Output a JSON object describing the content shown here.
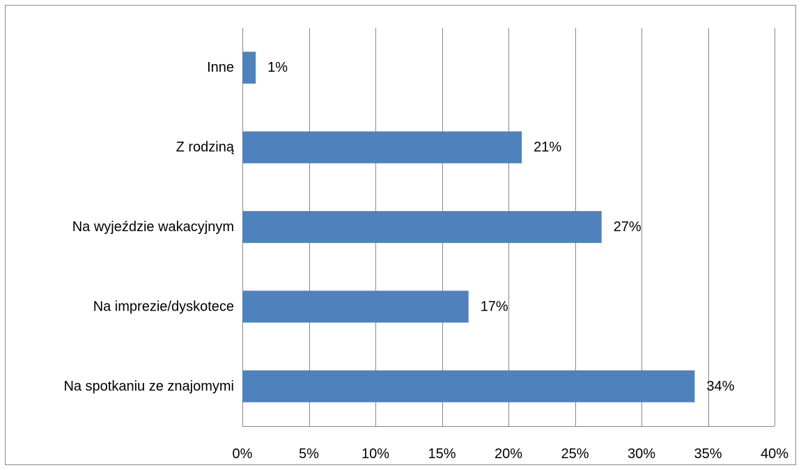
{
  "chart_data": {
    "type": "bar",
    "orientation": "horizontal",
    "title": "",
    "xlabel": "",
    "ylabel": "",
    "categories": [
      "Inne",
      "Z rodziną",
      "Na wyjeździe wakacyjnym",
      "Na imprezie/dyskotece",
      "Na spotkaniu ze znajomymi"
    ],
    "values": [
      1,
      21,
      27,
      17,
      34
    ],
    "data_labels": [
      "1%",
      "21%",
      "27%",
      "17%",
      "34%"
    ],
    "xlim": [
      0,
      40
    ],
    "x_ticks": [
      0,
      5,
      10,
      15,
      20,
      25,
      30,
      35,
      40
    ],
    "x_tick_labels": [
      "0%",
      "5%",
      "10%",
      "15%",
      "20%",
      "25%",
      "30%",
      "35%",
      "40%"
    ],
    "grid": true,
    "legend": "none",
    "colors": {
      "bar": "#4f81bd",
      "grid": "#878787",
      "frame": "#878787"
    }
  }
}
